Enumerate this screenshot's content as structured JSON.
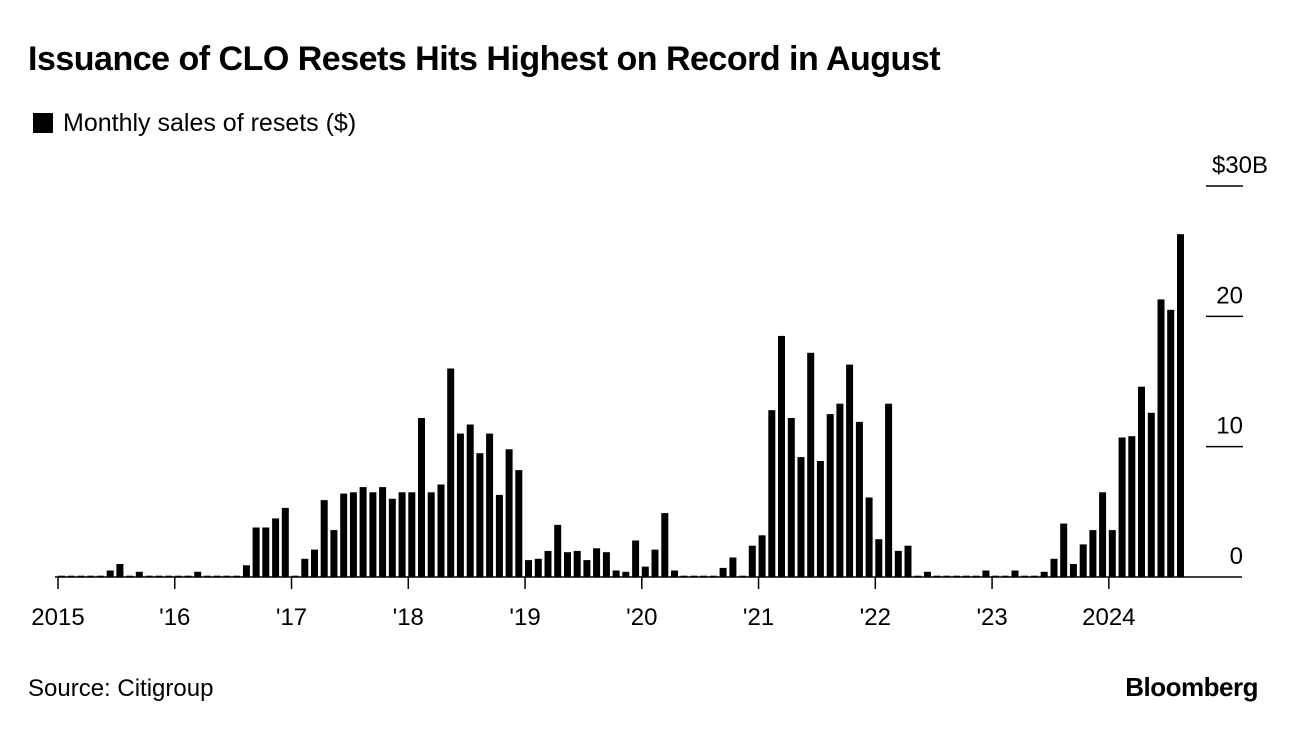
{
  "chart_data": {
    "type": "bar",
    "title": "Issuance of CLO Resets Hits Highest on Record in August",
    "legend": "Monthly sales of resets ($)",
    "legend_placement": "top-left",
    "x_tick_labels": [
      "2015",
      "'16",
      "'17",
      "'18",
      "'19",
      "'20",
      "'21",
      "'22",
      "'23",
      "2024"
    ],
    "y_tick_labels": [
      "0",
      "10",
      "20",
      "$30B"
    ],
    "y_ticks": [
      0,
      10,
      20,
      30
    ],
    "ylim": [
      0,
      30
    ],
    "grid": false,
    "color": "#000000",
    "start": "2015-01",
    "x": [
      "2015-01",
      "2015-02",
      "2015-03",
      "2015-04",
      "2015-05",
      "2015-06",
      "2015-07",
      "2015-08",
      "2015-09",
      "2015-10",
      "2015-11",
      "2015-12",
      "2016-01",
      "2016-02",
      "2016-03",
      "2016-04",
      "2016-05",
      "2016-06",
      "2016-07",
      "2016-08",
      "2016-09",
      "2016-10",
      "2016-11",
      "2016-12",
      "2017-01",
      "2017-02",
      "2017-03",
      "2017-04",
      "2017-05",
      "2017-06",
      "2017-07",
      "2017-08",
      "2017-09",
      "2017-10",
      "2017-11",
      "2017-12",
      "2018-01",
      "2018-02",
      "2018-03",
      "2018-04",
      "2018-05",
      "2018-06",
      "2018-07",
      "2018-08",
      "2018-09",
      "2018-10",
      "2018-11",
      "2018-12",
      "2019-01",
      "2019-02",
      "2019-03",
      "2019-04",
      "2019-05",
      "2019-06",
      "2019-07",
      "2019-08",
      "2019-09",
      "2019-10",
      "2019-11",
      "2019-12",
      "2020-01",
      "2020-02",
      "2020-03",
      "2020-04",
      "2020-05",
      "2020-06",
      "2020-07",
      "2020-08",
      "2020-09",
      "2020-10",
      "2020-11",
      "2020-12",
      "2021-01",
      "2021-02",
      "2021-03",
      "2021-04",
      "2021-05",
      "2021-06",
      "2021-07",
      "2021-08",
      "2021-09",
      "2021-10",
      "2021-11",
      "2021-12",
      "2022-01",
      "2022-02",
      "2022-03",
      "2022-04",
      "2022-05",
      "2022-06",
      "2022-07",
      "2022-08",
      "2022-09",
      "2022-10",
      "2022-11",
      "2022-12",
      "2023-01",
      "2023-02",
      "2023-03",
      "2023-04",
      "2023-05",
      "2023-06",
      "2023-07",
      "2023-08",
      "2023-09",
      "2023-10",
      "2023-11",
      "2023-12",
      "2024-01",
      "2024-02",
      "2024-03",
      "2024-04",
      "2024-05",
      "2024-06",
      "2024-07",
      "2024-08"
    ],
    "values": [
      0.1,
      0.1,
      0.1,
      0.1,
      0.1,
      0.5,
      1,
      0.1,
      0.4,
      0.1,
      0.1,
      0.1,
      0.1,
      0.1,
      0.4,
      0.1,
      0.1,
      0.1,
      0.1,
      0.9,
      3.8,
      3.8,
      4.5,
      5.3,
      0.1,
      1.4,
      2.1,
      5.9,
      3.6,
      6.4,
      6.5,
      6.9,
      6.5,
      6.9,
      6,
      6.5,
      6.5,
      12.2,
      6.5,
      7.1,
      16,
      11,
      11.7,
      9.5,
      11,
      6.3,
      9.8,
      8.2,
      1.3,
      1.4,
      2,
      4,
      1.9,
      2,
      1.3,
      2.2,
      1.9,
      0.5,
      0.4,
      2.8,
      0.8,
      2.1,
      4.9,
      0.5,
      0.1,
      0.1,
      0.1,
      0.1,
      0.7,
      1.5,
      0.1,
      2.4,
      3.2,
      12.8,
      18.5,
      12.2,
      9.2,
      17.2,
      8.9,
      12.5,
      13.3,
      16.3,
      11.9,
      6.1,
      2.9,
      13.3,
      2,
      2.4,
      0.1,
      0.4,
      0.1,
      0.1,
      0.1,
      0.1,
      0.1,
      0.5,
      0.1,
      0.1,
      0.5,
      0.1,
      0.1,
      0.4,
      1.4,
      4.1,
      1,
      2.5,
      3.6,
      6.5,
      3.6,
      10.7,
      10.8,
      14.6,
      12.6,
      21.3,
      20.5,
      26.3
    ]
  },
  "source": "Source: Citigroup",
  "brand": "Bloomberg"
}
